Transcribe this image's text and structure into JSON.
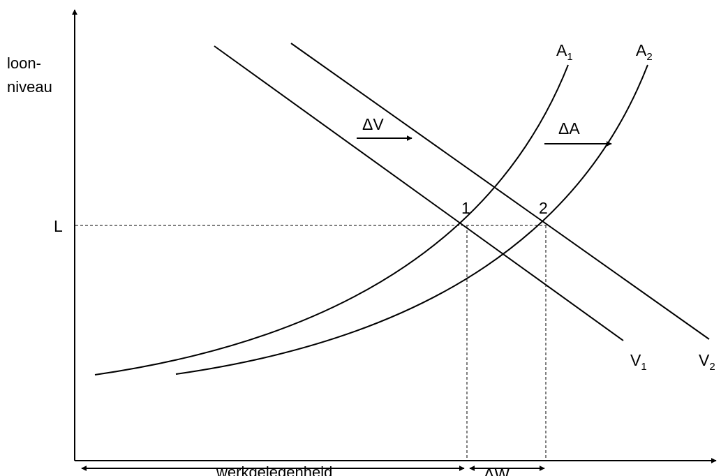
{
  "diagram": {
    "y_axis_label_line1": "loon-",
    "y_axis_label_line2": "niveau",
    "price_label": "L",
    "x_axis_label": "werkgelegenheid",
    "delta_w_label": "ΔW",
    "delta_v_label": "ΔV",
    "delta_a_label": "ΔA",
    "point_1": "1",
    "point_2": "2",
    "curves": {
      "a1": {
        "base": "A",
        "sub": "1"
      },
      "a2": {
        "base": "A",
        "sub": "2"
      },
      "v1": {
        "base": "V",
        "sub": "1"
      },
      "v2": {
        "base": "V",
        "sub": "2"
      }
    },
    "colors": {
      "ink": "#000000",
      "background": "#ffffff"
    }
  }
}
